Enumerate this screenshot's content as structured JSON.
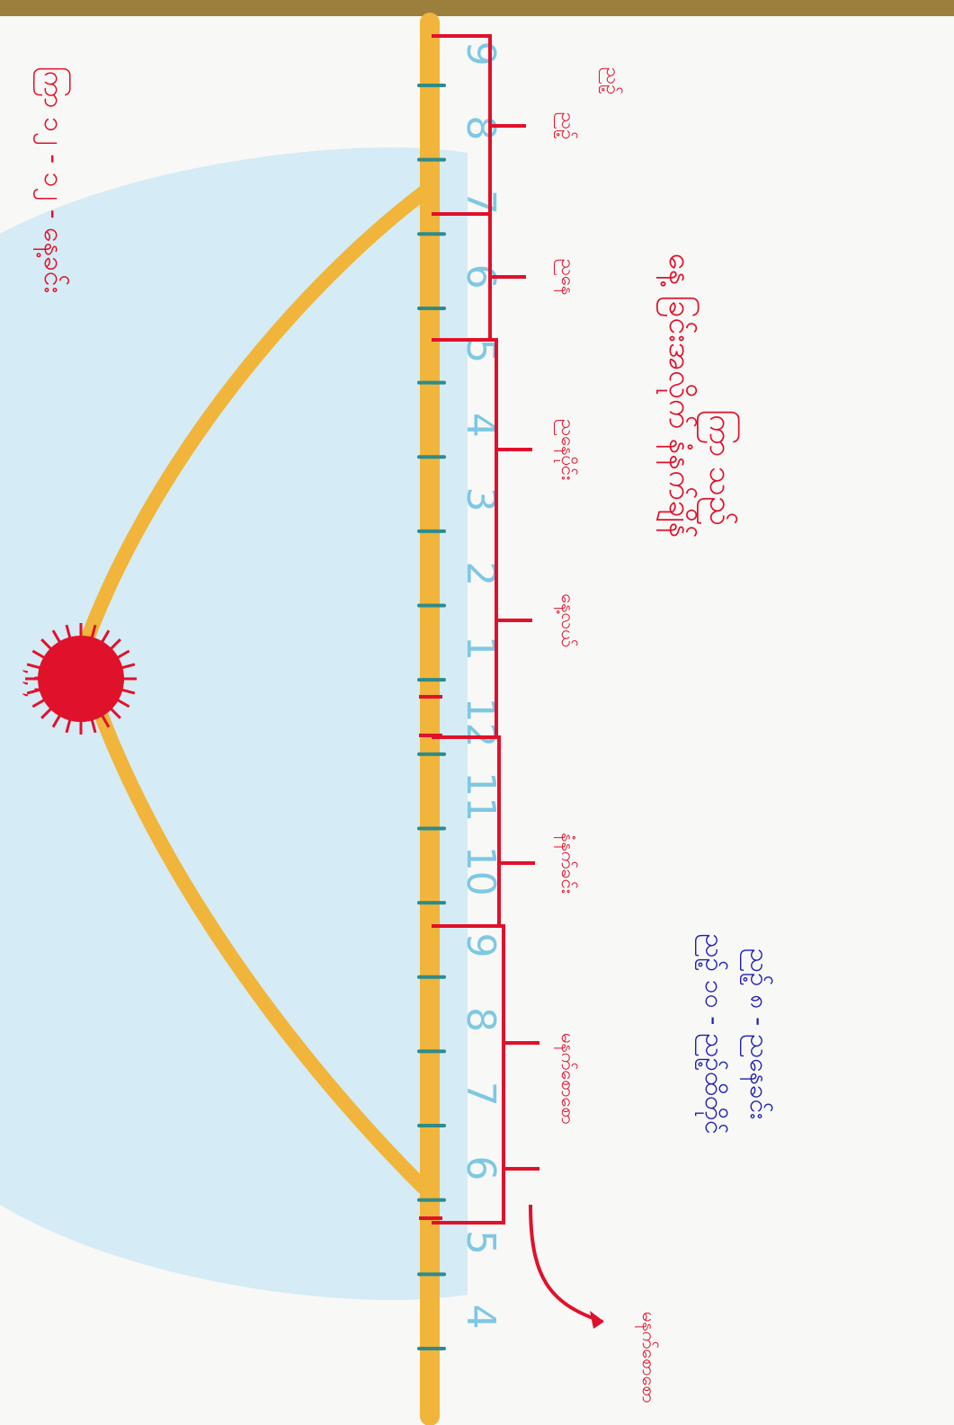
{
  "diagram": {
    "title_line1": "ကြာ သည်",
    "title_line2": "နေ့ ခြင်းအလိုက် နံနက်ချိန်",
    "hour_numbers": [
      "4",
      "5",
      "6",
      "7",
      "8",
      "9",
      "10",
      "11",
      "12",
      "1",
      "2",
      "3",
      "4",
      "5",
      "6",
      "7",
      "8",
      "9"
    ],
    "periods": [
      {
        "label": "မနက်စောစော"
      },
      {
        "label": "နံနက်ခင်း"
      },
      {
        "label": "နေ့လယ်"
      },
      {
        "label": "ညနေပိုင်း"
      },
      {
        "label": "ညနေ"
      },
      {
        "label": "ညဉ့်"
      }
    ],
    "left_corner_label": "ညဥ့်",
    "arrow_label": "မနက်စောစော",
    "legend_line1": "ညဉ့် ၈ - ညနေခင်း",
    "legend_line2": "ညဉ့် ၁၀ - ညဥ့်ထိတိုင်",
    "bottom_note": "ကြာ ၁၂ - ၁၂ - နေ့ခင်း",
    "sun_marks": ",',',",
    "colors": {
      "sky": "#cfe9f5",
      "ground": "#f0b53a",
      "sun": "#e0112b",
      "red_ink": "#e0112b",
      "blue_ink": "#1d1db5",
      "tick": "#2e8b8b",
      "numbers": "#7ec8e3"
    }
  }
}
